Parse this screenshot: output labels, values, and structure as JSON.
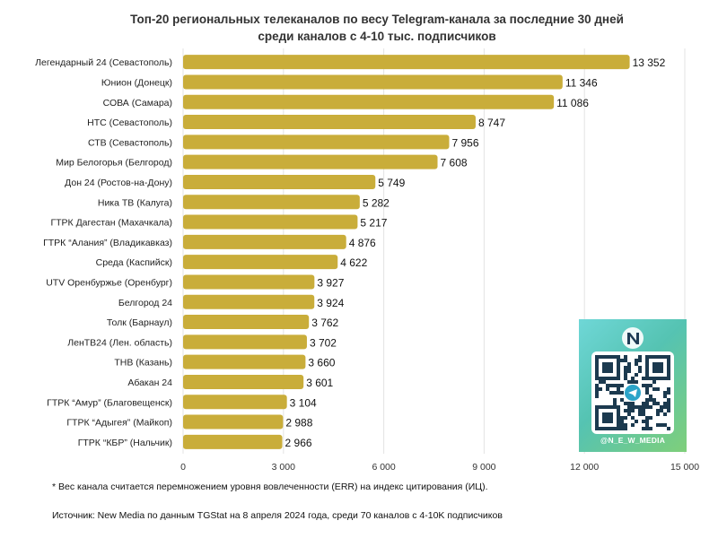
{
  "chart_data": {
    "type": "bar",
    "orientation": "horizontal",
    "title_line1": "Топ-20 региональных телеканалов по весу Telegram-канала за последние 30 дней",
    "title_line2": "среди каналов с 4-10 тыс. подписчиков",
    "categories": [
      "Легендарный 24 (Севастополь)",
      "Юнион (Донецк)",
      "СОВА (Самара)",
      "НТС (Севастополь)",
      "СТВ (Севастополь)",
      "Мир Белогорья (Белгород)",
      "Дон 24 (Ростов-на-Дону)",
      "Ника ТВ (Калуга)",
      "ГТРК Дагестан (Махачкала)",
      "ГТРК “Алания” (Владикавказ)",
      "Среда (Каспийск)",
      "UTV Оренбуржье (Оренбург)",
      "Белгород 24",
      "Толк (Барнаул)",
      "ЛенТВ24 (Лен. область)",
      "ТНВ (Казань)",
      "Абакан 24",
      "ГТРК “Амур” (Благовещенск)",
      "ГТРК “Адыгея” (Майкоп)",
      "ГТРК “КБР” (Нальчик)"
    ],
    "values": [
      13352,
      11346,
      11086,
      8747,
      7956,
      7608,
      5749,
      5282,
      5217,
      4876,
      4622,
      3927,
      3924,
      3762,
      3702,
      3660,
      3601,
      3104,
      2988,
      2966
    ],
    "value_labels": [
      "13 352",
      "11 346",
      "11 086",
      "8 747",
      "7 956",
      "7 608",
      "5 749",
      "5 282",
      "5 217",
      "4 876",
      "4 622",
      "3 927",
      "3 924",
      "3 762",
      "3 702",
      "3 660",
      "3 601",
      "3 104",
      "2 988",
      "2 966"
    ],
    "xlim": [
      0,
      15000
    ],
    "xticks": [
      0,
      3000,
      6000,
      9000,
      12000,
      15000
    ],
    "xtick_labels": [
      "0",
      "3 000",
      "6 000",
      "9 000",
      "12 000",
      "15 000"
    ],
    "grid": true,
    "bar_color": "#c9ad3a"
  },
  "footnote": "* Вес канала считается перемножением уровня вовлеченности (ERR) на индекс цитирования (ИЦ).",
  "source": "Источник: New Media по данным TGStat на 8 апреля 2024 года, среди 70 каналов с 4-10K подписчиков",
  "promo": {
    "handle": "@N_E_W_MEDIA",
    "logo_icon": "new-media-logo-icon",
    "qr_icon": "qr-code-icon"
  }
}
